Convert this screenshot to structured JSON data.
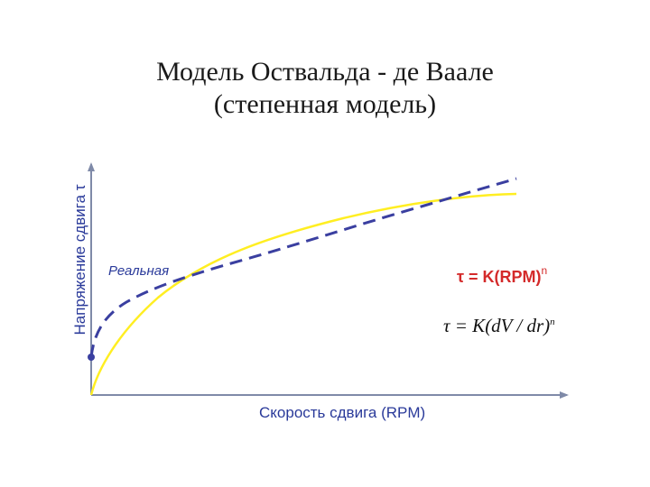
{
  "title": {
    "line1": "Модель Оствальда - де Ваале",
    "line2": "(степенная модель)"
  },
  "axes": {
    "y_label": "Напряжение сдвига τ",
    "x_label": "Скорость сдвига (RPM)"
  },
  "curves": {
    "dashed_label": "Реальная",
    "dashed_color": "#3a3fa0",
    "solid_color": "#ffee22"
  },
  "equations": {
    "eq1_main": "τ = K(RPM)",
    "eq1_sup": "n",
    "eq2_main": "τ = K(dV / dr)",
    "eq2_sup": "n"
  },
  "colors": {
    "axis": "#7f8aa8",
    "text_blue": "#2a3a9a",
    "equation_red": "#d42a2a"
  }
}
